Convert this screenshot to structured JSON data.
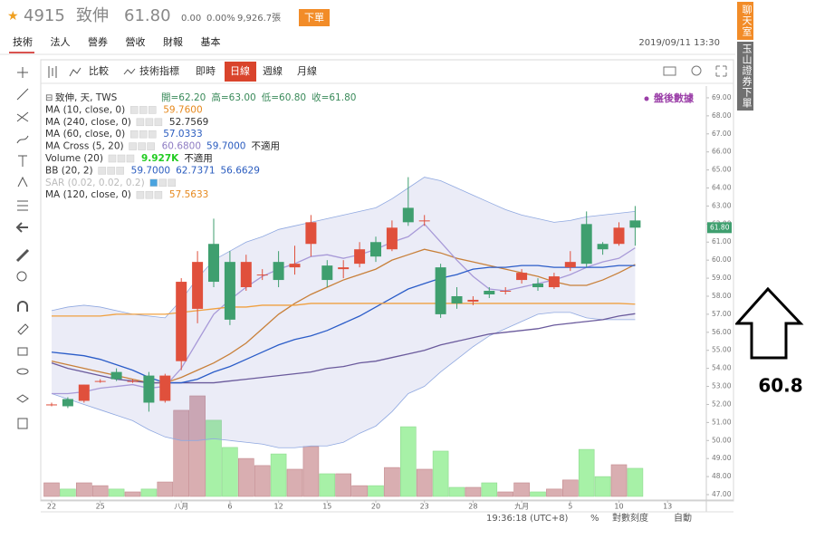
{
  "header": {
    "symbol": "4915",
    "name": "致伸",
    "price": "61.80",
    "change": "0.00",
    "change_pct": "0.00%",
    "volume": "9,926.7張",
    "order_button": "下單"
  },
  "tabs": [
    "技術",
    "法人",
    "營券",
    "營收",
    "財報",
    "基本"
  ],
  "datetime": "2019/09/11 13:30",
  "toolbar": {
    "compare": "比較",
    "indicators": "技術指標",
    "realtime": "即時",
    "daily": "日線",
    "weekly": "週線",
    "monthly": "月線"
  },
  "side": {
    "chat": "聊天室",
    "broker": "玉山證券下單"
  },
  "annotation": "60.8",
  "status": {
    "time": "19:36:18 (UTC+8)",
    "percent": "%",
    "log": "對數刻度",
    "auto": "自動"
  },
  "chart_data": {
    "type": "candlestick",
    "after_hours": "盤後數據",
    "price_tag": "61.80",
    "ohlc_legend": {
      "name": "致伸, 天, TWS",
      "readouts": [
        "開=62.20",
        "高=63.00",
        "低=60.80",
        "收=61.80"
      ]
    },
    "up_color": "#e0503c",
    "down_color": "#3f9f6f",
    "ylim": [
      46.7,
      69.65
    ],
    "yticks": [
      {
        "value": 47,
        "label": "47.00"
      },
      {
        "value": 48,
        "label": "48.00"
      },
      {
        "value": 49,
        "label": "49.00"
      },
      {
        "value": 50,
        "label": "50.00"
      },
      {
        "value": 51,
        "label": "51.00"
      },
      {
        "value": 52,
        "label": "52.00"
      },
      {
        "value": 53,
        "label": "53.00"
      },
      {
        "value": 54,
        "label": "54.00"
      },
      {
        "value": 55,
        "label": "55.00"
      },
      {
        "value": 56,
        "label": "56.00"
      },
      {
        "value": 57,
        "label": "57.00"
      },
      {
        "value": 58,
        "label": "58.00"
      },
      {
        "value": 59,
        "label": "59.00"
      },
      {
        "value": 60,
        "label": "60.00"
      },
      {
        "value": 61,
        "label": "61.00"
      },
      {
        "value": 62,
        "label": "62.00"
      },
      {
        "value": 63,
        "label": "63.00"
      },
      {
        "value": 64,
        "label": "64.00"
      },
      {
        "value": 65,
        "label": "65.00"
      },
      {
        "value": 66,
        "label": "66.00"
      },
      {
        "value": 67,
        "label": "67.00"
      },
      {
        "value": 68,
        "label": "68.00"
      },
      {
        "value": 69,
        "label": "69.00"
      }
    ],
    "xticks": [
      {
        "value": 0,
        "label": "22"
      },
      {
        "value": 3,
        "label": "25"
      },
      {
        "value": 8,
        "label": "八月"
      },
      {
        "value": 11,
        "label": "6"
      },
      {
        "value": 14,
        "label": "12"
      },
      {
        "value": 17,
        "label": "15"
      },
      {
        "value": 20,
        "label": "20"
      },
      {
        "value": 23,
        "label": "23"
      },
      {
        "value": 26,
        "label": "28"
      },
      {
        "value": 29,
        "label": "九月"
      },
      {
        "value": 32,
        "label": "5"
      },
      {
        "value": 35,
        "label": "10"
      },
      {
        "value": 38,
        "label": "13"
      }
    ],
    "open": [
      52.0,
      52.3,
      52.2,
      53.3,
      53.8,
      53.3,
      53.6,
      52.2,
      54.4,
      57.3,
      60.9,
      59.9,
      58.5,
      59.2,
      59.9,
      59.6,
      60.9,
      59.7,
      59.5,
      59.8,
      61.0,
      60.6,
      62.9,
      62.2,
      59.6,
      58.0,
      57.7,
      58.3,
      58.3,
      58.9,
      58.7,
      58.5,
      59.6,
      62.0,
      60.9,
      60.9,
      62.2
    ],
    "high": [
      52.1,
      52.4,
      53.1,
      53.4,
      54.0,
      53.4,
      53.8,
      53.7,
      59.0,
      60.5,
      62.3,
      60.5,
      60.3,
      59.5,
      60.5,
      60.8,
      62.5,
      60.0,
      60.0,
      61.0,
      61.3,
      62.2,
      64.6,
      62.5,
      59.8,
      58.5,
      58.0,
      58.5,
      58.5,
      59.5,
      59.0,
      59.3,
      60.5,
      62.7,
      61.0,
      62.1,
      63.0
    ],
    "low": [
      51.9,
      51.8,
      52.1,
      53.2,
      53.3,
      53.2,
      51.6,
      52.1,
      53.9,
      56.5,
      58.5,
      56.4,
      58.3,
      58.9,
      58.5,
      59.2,
      60.2,
      58.5,
      59.0,
      59.6,
      59.9,
      60.5,
      61.9,
      61.9,
      56.8,
      57.3,
      57.5,
      57.9,
      58.1,
      58.7,
      58.3,
      58.4,
      59.4,
      59.6,
      60.3,
      60.8,
      60.8
    ],
    "close": [
      52.0,
      51.9,
      53.1,
      53.3,
      53.4,
      53.3,
      52.1,
      53.6,
      58.8,
      59.9,
      58.8,
      56.7,
      59.9,
      59.2,
      58.9,
      59.8,
      62.1,
      58.9,
      59.6,
      60.6,
      60.2,
      61.8,
      62.1,
      62.2,
      57.0,
      57.6,
      57.8,
      58.1,
      58.3,
      59.3,
      58.5,
      59.1,
      59.9,
      59.8,
      60.6,
      61.8,
      61.8
    ],
    "bb": {
      "upper": [
        57.2,
        57.4,
        57.5,
        57.4,
        57.2,
        57.0,
        56.9,
        56.8,
        57.8,
        59.0,
        60.0,
        60.5,
        61.0,
        61.3,
        61.7,
        61.9,
        62.1,
        62.3,
        62.5,
        62.7,
        62.9,
        63.4,
        64.0,
        64.6,
        64.4,
        64.0,
        63.6,
        63.2,
        62.8,
        62.5,
        62.3,
        62.1,
        62.2,
        62.4,
        62.5,
        62.6,
        62.7
      ],
      "lower": [
        52.6,
        52.3,
        52.0,
        51.7,
        51.4,
        51.1,
        50.6,
        50.2,
        50.0,
        50.0,
        50.1,
        50.0,
        49.9,
        49.8,
        49.6,
        49.6,
        49.7,
        49.7,
        49.9,
        50.4,
        50.8,
        51.6,
        52.6,
        53.0,
        53.8,
        54.5,
        55.2,
        55.8,
        56.2,
        56.6,
        57.0,
        57.1,
        57.1,
        56.8,
        56.7,
        56.7,
        56.7
      ],
      "fill": "rgba(110,120,200,0.14)",
      "edge": "#8fa8e0"
    },
    "series": [
      {
        "name": "MA (10, close, 0)",
        "kind": "line",
        "color": "#c8803a",
        "readouts": [
          {
            "text": "59.7600",
            "color": "#e6891e"
          }
        ],
        "values": [
          54.4,
          54.2,
          54.0,
          53.8,
          53.6,
          53.4,
          53.2,
          53.2,
          53.5,
          53.9,
          54.3,
          54.8,
          55.4,
          56.2,
          57.0,
          57.6,
          58.1,
          58.5,
          58.9,
          59.2,
          59.5,
          60.0,
          60.3,
          60.6,
          60.4,
          60.1,
          59.9,
          59.7,
          59.5,
          59.3,
          59.1,
          58.8,
          58.6,
          58.6,
          58.9,
          59.3,
          59.76
        ]
      },
      {
        "name": "MA (240, close, 0)",
        "kind": "none",
        "color": "#333333",
        "readouts": [
          {
            "text": "52.7569",
            "color": "#333333"
          }
        ]
      },
      {
        "name": "MA (60, close, 0)",
        "kind": "line",
        "color": "#6a5a9c",
        "readouts": [
          {
            "text": "57.0333",
            "color": "#2a5cbf"
          }
        ],
        "values": [
          54.3,
          54.0,
          53.8,
          53.6,
          53.4,
          53.3,
          53.2,
          53.2,
          53.2,
          53.2,
          53.2,
          53.3,
          53.4,
          53.5,
          53.6,
          53.7,
          53.8,
          54.0,
          54.1,
          54.3,
          54.4,
          54.6,
          54.8,
          55.0,
          55.3,
          55.5,
          55.7,
          55.9,
          56.0,
          56.1,
          56.2,
          56.4,
          56.5,
          56.6,
          56.7,
          56.9,
          57.03
        ]
      },
      {
        "name": "MA Cross (5, 20)",
        "kind": "line",
        "color": "#a89ad8",
        "readouts": [
          {
            "text": "60.6800",
            "color": "#8e7cc3"
          },
          {
            "text": "59.7000",
            "color": "#2a5cbf"
          },
          {
            "text": "不適用",
            "color": "#222222"
          }
        ],
        "values": [
          52.6,
          52.6,
          52.7,
          52.9,
          53.0,
          53.1,
          52.9,
          53.0,
          54.0,
          55.5,
          57.0,
          57.8,
          58.5,
          59.1,
          59.5,
          59.8,
          60.2,
          60.3,
          60.1,
          60.3,
          60.6,
          61.0,
          61.3,
          62.0,
          61.0,
          60.0,
          59.1,
          58.4,
          58.3,
          58.5,
          58.7,
          58.9,
          59.2,
          59.6,
          59.9,
          60.1,
          60.68
        ]
      },
      {
        "name": "Volume (20)",
        "kind": "volume",
        "color": "#a7f1a7",
        "up_color": "#d9aeb1",
        "readouts": [
          {
            "text": "9.927K",
            "color": "#22cc22"
          },
          {
            "text": "不適用",
            "color": "#222222"
          }
        ],
        "values": [
          4800,
          2600,
          4800,
          3800,
          2600,
          1600,
          2600,
          5100,
          30400,
          35500,
          26900,
          17300,
          13400,
          10900,
          15000,
          9600,
          17600,
          8000,
          8000,
          3800,
          3800,
          10200,
          24600,
          9600,
          16000,
          3200,
          3200,
          4800,
          1600,
          4800,
          1600,
          2600,
          5800,
          16600,
          7000,
          11200,
          9927
        ]
      },
      {
        "name": "BB (20, 2)",
        "kind": "line",
        "color": "#2a5cc8",
        "readouts": [
          {
            "text": "59.7000",
            "color": "#2a5cbf"
          },
          {
            "text": "62.7371",
            "color": "#2a5cbf"
          },
          {
            "text": "56.6629",
            "color": "#2a5cbf"
          }
        ],
        "values": [
          54.9,
          54.8,
          54.7,
          54.5,
          54.2,
          53.9,
          53.5,
          53.2,
          53.2,
          53.4,
          53.8,
          54.1,
          54.5,
          54.9,
          55.3,
          55.6,
          55.8,
          56.1,
          56.5,
          56.9,
          57.4,
          57.9,
          58.4,
          58.7,
          59.0,
          59.2,
          59.5,
          59.6,
          59.6,
          59.7,
          59.7,
          59.6,
          59.6,
          59.6,
          59.6,
          59.7,
          59.7
        ]
      },
      {
        "name": "SAR (0.02, 0.02, 0.2)",
        "kind": "none",
        "color": "#bbbbbb",
        "readouts": []
      },
      {
        "name": "MA (120, close, 0)",
        "kind": "line",
        "color": "#f0a040",
        "readouts": [
          {
            "text": "57.5633",
            "color": "#e6891e"
          }
        ],
        "values": [
          56.9,
          56.9,
          56.9,
          56.9,
          57.0,
          57.0,
          57.0,
          57.0,
          57.1,
          57.2,
          57.3,
          57.4,
          57.4,
          57.5,
          57.5,
          57.5,
          57.6,
          57.6,
          57.6,
          57.6,
          57.6,
          57.6,
          57.6,
          57.6,
          57.6,
          57.6,
          57.6,
          57.6,
          57.6,
          57.6,
          57.6,
          57.6,
          57.6,
          57.6,
          57.6,
          57.6,
          57.56
        ]
      }
    ]
  }
}
